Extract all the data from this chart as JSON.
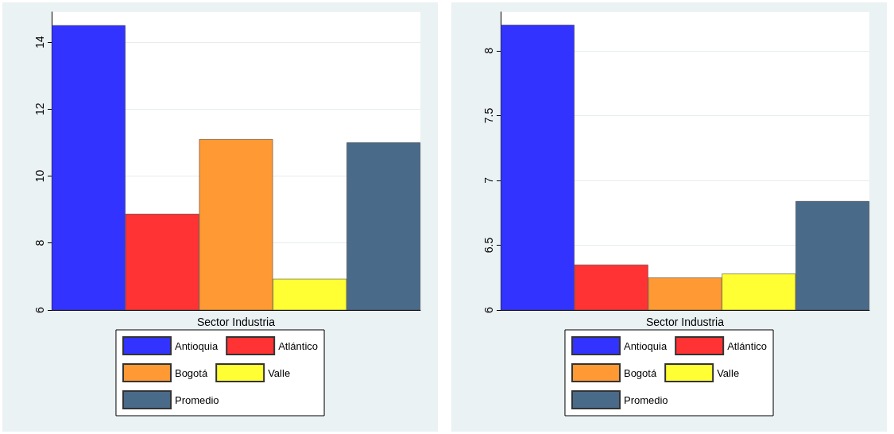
{
  "chart_data": [
    {
      "type": "bar",
      "categories": [
        "Sector Industria"
      ],
      "ylim": [
        6,
        14.9
      ],
      "yticks": [
        6,
        8,
        10,
        12,
        14
      ],
      "grid": "y",
      "legend": "bottom",
      "series": [
        {
          "name": "Antioquia",
          "color": "#3333ff",
          "values": [
            14.5
          ]
        },
        {
          "name": "Atlántico",
          "color": "#ff3333",
          "values": [
            8.87
          ]
        },
        {
          "name": "Bogotá",
          "color": "#ff9933",
          "values": [
            11.1
          ]
        },
        {
          "name": "Valle",
          "color": "#ffff33",
          "values": [
            6.93
          ]
        },
        {
          "name": "Promedio",
          "color": "#4a6a8a",
          "values": [
            11
          ]
        }
      ]
    },
    {
      "type": "bar",
      "categories": [
        "Sector Industria"
      ],
      "ylim": [
        6,
        8.3
      ],
      "yticks": [
        6,
        6.5,
        7,
        7.5,
        8
      ],
      "grid": "y",
      "legend": "bottom",
      "series": [
        {
          "name": "Antioquia",
          "color": "#3333ff",
          "values": [
            8.2
          ]
        },
        {
          "name": "Atlántico",
          "color": "#ff3333",
          "values": [
            6.35
          ]
        },
        {
          "name": "Bogotá",
          "color": "#ff9933",
          "values": [
            6.25
          ]
        },
        {
          "name": "Valle",
          "color": "#ffff33",
          "values": [
            6.28
          ]
        },
        {
          "name": "Promedio",
          "color": "#4a6a8a",
          "values": [
            6.84
          ]
        }
      ]
    }
  ]
}
